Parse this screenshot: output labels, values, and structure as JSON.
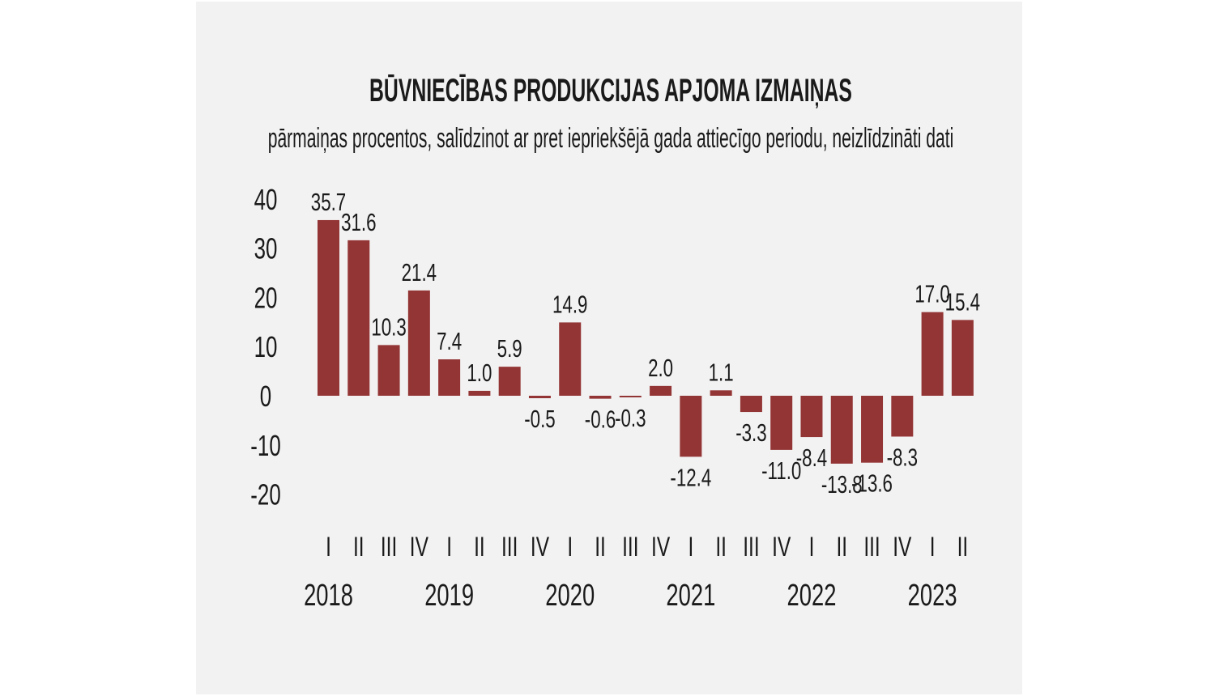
{
  "chart_data": {
    "type": "bar",
    "title": "BŪVNIECĪBAS PRODUKCIJAS APJOMA IZMAIŅAS",
    "subtitle": "pārmaiņas procentos, salīdzinot ar pret iepriekšējā gada attiecīgo periodu, neizlīdzināti dati",
    "xlabel": "",
    "ylabel": "",
    "ylim": [
      -20,
      40
    ],
    "yticks": [
      40,
      30,
      20,
      10,
      0,
      -10,
      -20
    ],
    "grid": false,
    "categories": [
      "I",
      "II",
      "III",
      "IV",
      "I",
      "II",
      "III",
      "IV",
      "I",
      "II",
      "III",
      "IV",
      "I",
      "II",
      "III",
      "IV",
      "I",
      "II",
      "III",
      "IV",
      "I",
      "II"
    ],
    "years": [
      "2018",
      "2019",
      "2020",
      "2021",
      "2022",
      "2023"
    ],
    "values": [
      35.7,
      31.6,
      10.3,
      21.4,
      7.4,
      1.0,
      5.9,
      -0.5,
      14.9,
      -0.6,
      -0.3,
      2.0,
      -12.4,
      1.1,
      -3.3,
      -11.0,
      -8.4,
      -13.8,
      -13.6,
      -8.3,
      17.0,
      15.4
    ],
    "data_labels": [
      "35.7",
      "31.6",
      "10.3",
      "21.4",
      "7.4",
      "1.0",
      "5.9",
      "-0.5",
      "14.9",
      "-0.6",
      "-0.3",
      "2.0",
      "-12.4",
      "1.1",
      "-3.3",
      "-11.0",
      "-8.4",
      "-13.8",
      "-13.6",
      "-8.3",
      "17.0",
      "15.4"
    ],
    "bar_color": "#943535"
  }
}
